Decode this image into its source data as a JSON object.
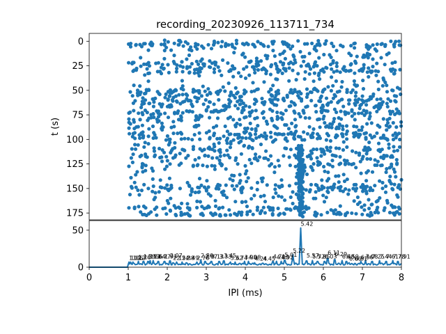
{
  "chart_data": {
    "title": "recording_20230926_113711_734",
    "panels": [
      {
        "id": "raster",
        "type": "scatter",
        "ylabel": "t (s)",
        "y_inverted": true,
        "xlim": [
          0,
          8
        ],
        "ylim": [
          -8,
          182
        ],
        "yticks": [
          0,
          25,
          50,
          75,
          100,
          125,
          150,
          175
        ],
        "color": "#1f77b4",
        "point_count_approx": 1900,
        "dense_column_x": 5.42,
        "x_range_of_points": [
          1.0,
          8.0
        ]
      },
      {
        "id": "histogram",
        "type": "line",
        "xlabel": "IPI (ms)",
        "xlim": [
          0,
          8
        ],
        "ylim": [
          0,
          63
        ],
        "xticks": [
          0,
          1,
          2,
          3,
          4,
          5,
          6,
          7,
          8
        ],
        "yticks": [
          0,
          50
        ],
        "color": "#1f77b4",
        "main_peak": {
          "x": 5.42,
          "y": 53
        },
        "peak_labels": [
          {
            "x": 1.02,
            "y": 9,
            "text": "1.02"
          },
          {
            "x": 1.06,
            "y": 9,
            "text": "1.06"
          },
          {
            "x": 1.12,
            "y": 9,
            "text": "1.12"
          },
          {
            "x": 1.26,
            "y": 10,
            "text": "1.26"
          },
          {
            "x": 1.39,
            "y": 11,
            "text": "1.39"
          },
          {
            "x": 1.51,
            "y": 11,
            "text": "1.51"
          },
          {
            "x": 1.56,
            "y": 11,
            "text": "1.56"
          },
          {
            "x": 1.64,
            "y": 11,
            "text": "1.64"
          },
          {
            "x": 1.77,
            "y": 11,
            "text": "1.77"
          },
          {
            "x": 1.93,
            "y": 11,
            "text": "1.93"
          },
          {
            "x": 2.07,
            "y": 12,
            "text": "2.07"
          },
          {
            "x": 2.15,
            "y": 9,
            "text": "2.15"
          },
          {
            "x": 2.24,
            "y": 9,
            "text": "2.24"
          },
          {
            "x": 2.38,
            "y": 9,
            "text": "2.38"
          },
          {
            "x": 2.49,
            "y": 9,
            "text": "2.49"
          },
          {
            "x": 2.76,
            "y": 9,
            "text": "2.76"
          },
          {
            "x": 2.86,
            "y": 12,
            "text": "2.86"
          },
          {
            "x": 2.97,
            "y": 11,
            "text": "2.97"
          },
          {
            "x": 3.13,
            "y": 11,
            "text": "3.13"
          },
          {
            "x": 3.33,
            "y": 11,
            "text": "3.33"
          },
          {
            "x": 3.45,
            "y": 12,
            "text": "3.45"
          },
          {
            "x": 3.62,
            "y": 9,
            "text": "3.62"
          },
          {
            "x": 3.74,
            "y": 9,
            "text": "3.74"
          },
          {
            "x": 3.98,
            "y": 10,
            "text": "3.98"
          },
          {
            "x": 4.08,
            "y": 10,
            "text": "4.08"
          },
          {
            "x": 4.24,
            "y": 8,
            "text": "4.24"
          },
          {
            "x": 4.45,
            "y": 8,
            "text": "4.45"
          },
          {
            "x": 4.71,
            "y": 11,
            "text": "4.71"
          },
          {
            "x": 4.8,
            "y": 10,
            "text": "4.80"
          },
          {
            "x": 4.92,
            "y": 10,
            "text": "4.92"
          },
          {
            "x": 5.01,
            "y": 13,
            "text": "5.01"
          },
          {
            "x": 5.22,
            "y": 19,
            "text": "5.22"
          },
          {
            "x": 5.42,
            "y": 55,
            "text": "5.42"
          },
          {
            "x": 5.57,
            "y": 12,
            "text": "5.57"
          },
          {
            "x": 5.72,
            "y": 11,
            "text": "5.72"
          },
          {
            "x": 5.85,
            "y": 11,
            "text": "5.85"
          },
          {
            "x": 6.03,
            "y": 11,
            "text": "6.03"
          },
          {
            "x": 6.11,
            "y": 16,
            "text": "6.11"
          },
          {
            "x": 6.29,
            "y": 14,
            "text": "6.29"
          },
          {
            "x": 6.48,
            "y": 11,
            "text": "6.48"
          },
          {
            "x": 6.59,
            "y": 11,
            "text": "6.59"
          },
          {
            "x": 6.66,
            "y": 8,
            "text": "6.66"
          },
          {
            "x": 6.81,
            "y": 8,
            "text": "6.81"
          },
          {
            "x": 6.96,
            "y": 10,
            "text": "6.96"
          },
          {
            "x": 7.08,
            "y": 11,
            "text": "7.08"
          },
          {
            "x": 7.25,
            "y": 11,
            "text": "7.25"
          },
          {
            "x": 7.44,
            "y": 11,
            "text": "7.44"
          },
          {
            "x": 7.61,
            "y": 11,
            "text": "7.61"
          },
          {
            "x": 7.78,
            "y": 11,
            "text": "7.78"
          },
          {
            "x": 7.91,
            "y": 11,
            "text": "7.91"
          }
        ]
      }
    ]
  }
}
